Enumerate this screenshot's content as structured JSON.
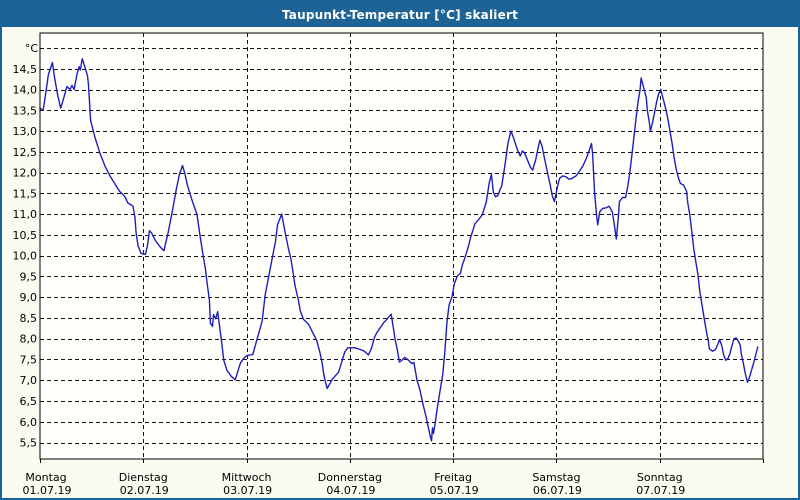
{
  "window": {
    "title": "Taupunkt-Temperatur [°C] skaliert"
  },
  "colors": {
    "titlebar": "#1d6396",
    "window_border": "#1d6396",
    "window_bg": "#fbfbf1",
    "plot_bg": "#fffffb",
    "grid": "#111111",
    "axis": "#000000",
    "line": "#1e1ebe",
    "title_text": "#ffffff"
  },
  "chart_data": {
    "type": "line",
    "title": "Taupunkt-Temperatur [°C] skaliert",
    "grid": true,
    "y_axis": {
      "unit_label": "°C",
      "grid_min": 5.5,
      "grid_max": 15.0,
      "step": 0.5,
      "labeled_min": 5.5,
      "labeled_max": 14.5,
      "decimal_separator": ","
    },
    "x_axis": {
      "days": [
        {
          "name": "Montag",
          "date": "01.07.19"
        },
        {
          "name": "Dienstag",
          "date": "02.07.19"
        },
        {
          "name": "Mittwoch",
          "date": "03.07.19"
        },
        {
          "name": "Donnerstag",
          "date": "04.07.19"
        },
        {
          "name": "Freitag",
          "date": "05.07.19"
        },
        {
          "name": "Samstag",
          "date": "06.07.19"
        },
        {
          "name": "Sonntag",
          "date": "07.07.19"
        }
      ]
    },
    "series": [
      {
        "name": "Taupunkt-Temperatur",
        "points": [
          [
            0,
            13.55
          ],
          [
            0.03,
            13.5
          ],
          [
            0.05,
            13.82
          ],
          [
            0.08,
            14.35
          ],
          [
            0.12,
            14.65
          ],
          [
            0.14,
            14.3
          ],
          [
            0.17,
            13.87
          ],
          [
            0.2,
            13.55
          ],
          [
            0.23,
            13.8
          ],
          [
            0.26,
            14.07
          ],
          [
            0.29,
            14.0
          ],
          [
            0.31,
            14.1
          ],
          [
            0.33,
            14.0
          ],
          [
            0.36,
            14.39
          ],
          [
            0.38,
            14.55
          ],
          [
            0.39,
            14.47
          ],
          [
            0.41,
            14.74
          ],
          [
            0.43,
            14.58
          ],
          [
            0.44,
            14.5
          ],
          [
            0.46,
            14.33
          ],
          [
            0.47,
            14.11
          ],
          [
            0.49,
            13.26
          ],
          [
            0.53,
            12.87
          ],
          [
            0.58,
            12.47
          ],
          [
            0.63,
            12.15
          ],
          [
            0.68,
            11.91
          ],
          [
            0.73,
            11.71
          ],
          [
            0.77,
            11.55
          ],
          [
            0.82,
            11.43
          ],
          [
            0.85,
            11.27
          ],
          [
            0.9,
            11.19
          ],
          [
            0.92,
            10.91
          ],
          [
            0.93,
            10.55
          ],
          [
            0.95,
            10.23
          ],
          [
            0.98,
            10.05
          ],
          [
            1.02,
            10.03
          ],
          [
            1.04,
            10.23
          ],
          [
            1.06,
            10.6
          ],
          [
            1.08,
            10.55
          ],
          [
            1.12,
            10.35
          ],
          [
            1.16,
            10.22
          ],
          [
            1.2,
            10.12
          ],
          [
            1.24,
            10.55
          ],
          [
            1.28,
            11.05
          ],
          [
            1.32,
            11.6
          ],
          [
            1.35,
            11.95
          ],
          [
            1.38,
            12.17
          ],
          [
            1.4,
            12.0
          ],
          [
            1.43,
            11.67
          ],
          [
            1.48,
            11.27
          ],
          [
            1.52,
            10.99
          ],
          [
            1.55,
            10.47
          ],
          [
            1.58,
            9.99
          ],
          [
            1.6,
            9.7
          ],
          [
            1.62,
            9.3
          ],
          [
            1.64,
            8.94
          ],
          [
            1.65,
            8.37
          ],
          [
            1.67,
            8.3
          ],
          [
            1.68,
            8.58
          ],
          [
            1.7,
            8.48
          ],
          [
            1.72,
            8.65
          ],
          [
            1.76,
            7.88
          ],
          [
            1.78,
            7.48
          ],
          [
            1.81,
            7.24
          ],
          [
            1.85,
            7.1
          ],
          [
            1.89,
            7.01
          ],
          [
            1.94,
            7.41
          ],
          [
            1.97,
            7.52
          ],
          [
            2.0,
            7.59
          ],
          [
            2.06,
            7.62
          ],
          [
            2.11,
            8.06
          ],
          [
            2.15,
            8.42
          ],
          [
            2.18,
            9.06
          ],
          [
            2.23,
            9.7
          ],
          [
            2.28,
            10.34
          ],
          [
            2.3,
            10.75
          ],
          [
            2.34,
            11.0
          ],
          [
            2.37,
            10.6
          ],
          [
            2.4,
            10.23
          ],
          [
            2.43,
            9.91
          ],
          [
            2.45,
            9.59
          ],
          [
            2.47,
            9.27
          ],
          [
            2.5,
            8.95
          ],
          [
            2.52,
            8.67
          ],
          [
            2.55,
            8.47
          ],
          [
            2.6,
            8.35
          ],
          [
            2.64,
            8.15
          ],
          [
            2.68,
            7.95
          ],
          [
            2.71,
            7.67
          ],
          [
            2.73,
            7.43
          ],
          [
            2.75,
            7.11
          ],
          [
            2.78,
            6.8
          ],
          [
            2.83,
            7.02
          ],
          [
            2.86,
            7.11
          ],
          [
            2.89,
            7.19
          ],
          [
            2.92,
            7.43
          ],
          [
            2.95,
            7.68
          ],
          [
            2.98,
            7.78
          ],
          [
            3.05,
            7.78
          ],
          [
            3.1,
            7.74
          ],
          [
            3.14,
            7.7
          ],
          [
            3.18,
            7.61
          ],
          [
            3.21,
            7.77
          ],
          [
            3.24,
            8.04
          ],
          [
            3.26,
            8.14
          ],
          [
            3.29,
            8.25
          ],
          [
            3.33,
            8.39
          ],
          [
            3.36,
            8.47
          ],
          [
            3.4,
            8.59
          ],
          [
            3.44,
            7.96
          ],
          [
            3.46,
            7.72
          ],
          [
            3.48,
            7.44
          ],
          [
            3.5,
            7.47
          ],
          [
            3.53,
            7.55
          ],
          [
            3.56,
            7.5
          ],
          [
            3.6,
            7.4
          ],
          [
            3.62,
            7.43
          ],
          [
            3.65,
            7.0
          ],
          [
            3.68,
            6.75
          ],
          [
            3.71,
            6.4
          ],
          [
            3.74,
            6.1
          ],
          [
            3.76,
            5.85
          ],
          [
            3.78,
            5.64
          ],
          [
            3.79,
            5.54
          ],
          [
            3.8,
            5.85
          ],
          [
            3.81,
            5.72
          ],
          [
            3.83,
            6.04
          ],
          [
            3.85,
            6.4
          ],
          [
            3.88,
            6.84
          ],
          [
            3.9,
            7.15
          ],
          [
            3.92,
            7.7
          ],
          [
            3.94,
            8.38
          ],
          [
            3.96,
            8.8
          ],
          [
            3.99,
            9.02
          ],
          [
            4.01,
            9.31
          ],
          [
            4.04,
            9.51
          ],
          [
            4.07,
            9.57
          ],
          [
            4.09,
            9.78
          ],
          [
            4.11,
            9.92
          ],
          [
            4.13,
            10.08
          ],
          [
            4.15,
            10.24
          ],
          [
            4.17,
            10.45
          ],
          [
            4.19,
            10.6
          ],
          [
            4.21,
            10.76
          ],
          [
            4.25,
            10.88
          ],
          [
            4.28,
            10.98
          ],
          [
            4.32,
            11.28
          ],
          [
            4.35,
            11.76
          ],
          [
            4.37,
            11.96
          ],
          [
            4.39,
            11.52
          ],
          [
            4.41,
            11.42
          ],
          [
            4.43,
            11.44
          ],
          [
            4.47,
            11.68
          ],
          [
            4.49,
            12.0
          ],
          [
            4.51,
            12.32
          ],
          [
            4.53,
            12.7
          ],
          [
            4.55,
            12.9
          ],
          [
            4.56,
            13.0
          ],
          [
            4.59,
            12.8
          ],
          [
            4.61,
            12.64
          ],
          [
            4.63,
            12.5
          ],
          [
            4.65,
            12.4
          ],
          [
            4.67,
            12.52
          ],
          [
            4.69,
            12.48
          ],
          [
            4.71,
            12.36
          ],
          [
            4.73,
            12.24
          ],
          [
            4.75,
            12.12
          ],
          [
            4.77,
            12.06
          ],
          [
            4.8,
            12.32
          ],
          [
            4.82,
            12.56
          ],
          [
            4.84,
            12.78
          ],
          [
            4.86,
            12.64
          ],
          [
            4.88,
            12.4
          ],
          [
            4.9,
            12.16
          ],
          [
            4.92,
            11.92
          ],
          [
            4.94,
            11.7
          ],
          [
            4.96,
            11.44
          ],
          [
            4.98,
            11.3
          ],
          [
            5.01,
            11.66
          ],
          [
            5.03,
            11.86
          ],
          [
            5.06,
            11.92
          ],
          [
            5.09,
            11.9
          ],
          [
            5.12,
            11.84
          ],
          [
            5.15,
            11.86
          ],
          [
            5.19,
            11.92
          ],
          [
            5.23,
            12.06
          ],
          [
            5.26,
            12.18
          ],
          [
            5.29,
            12.35
          ],
          [
            5.32,
            12.55
          ],
          [
            5.34,
            12.7
          ],
          [
            5.35,
            12.45
          ],
          [
            5.36,
            11.98
          ],
          [
            5.37,
            11.5
          ],
          [
            5.39,
            10.95
          ],
          [
            5.4,
            10.74
          ],
          [
            5.42,
            11.06
          ],
          [
            5.45,
            11.14
          ],
          [
            5.48,
            11.15
          ],
          [
            5.51,
            11.19
          ],
          [
            5.54,
            11.06
          ],
          [
            5.56,
            10.75
          ],
          [
            5.58,
            10.4
          ],
          [
            5.6,
            10.94
          ],
          [
            5.61,
            11.3
          ],
          [
            5.64,
            11.4
          ],
          [
            5.67,
            11.4
          ],
          [
            5.69,
            11.66
          ],
          [
            5.71,
            12.0
          ],
          [
            5.73,
            12.4
          ],
          [
            5.75,
            12.85
          ],
          [
            5.77,
            13.3
          ],
          [
            5.79,
            13.7
          ],
          [
            5.81,
            14.0
          ],
          [
            5.82,
            14.28
          ],
          [
            5.85,
            14.0
          ],
          [
            5.87,
            13.8
          ],
          [
            5.88,
            13.5
          ],
          [
            5.9,
            13.2
          ],
          [
            5.91,
            13.0
          ],
          [
            5.93,
            13.2
          ],
          [
            5.95,
            13.45
          ],
          [
            5.97,
            13.7
          ],
          [
            5.99,
            13.9
          ],
          [
            6.01,
            14.0
          ],
          [
            6.04,
            13.72
          ],
          [
            6.06,
            13.52
          ],
          [
            6.08,
            13.28
          ],
          [
            6.1,
            13.0
          ],
          [
            6.12,
            12.7
          ],
          [
            6.14,
            12.35
          ],
          [
            6.16,
            12.08
          ],
          [
            6.18,
            11.88
          ],
          [
            6.2,
            11.74
          ],
          [
            6.23,
            11.7
          ],
          [
            6.26,
            11.55
          ],
          [
            6.27,
            11.3
          ],
          [
            6.29,
            11.0
          ],
          [
            6.31,
            10.6
          ],
          [
            6.33,
            10.16
          ],
          [
            6.35,
            9.84
          ],
          [
            6.37,
            9.55
          ],
          [
            6.39,
            9.1
          ],
          [
            6.41,
            8.8
          ],
          [
            6.43,
            8.5
          ],
          [
            6.45,
            8.2
          ],
          [
            6.47,
            7.95
          ],
          [
            6.48,
            7.76
          ],
          [
            6.51,
            7.7
          ],
          [
            6.54,
            7.74
          ],
          [
            6.56,
            7.85
          ],
          [
            6.58,
            7.98
          ],
          [
            6.6,
            7.84
          ],
          [
            6.62,
            7.6
          ],
          [
            6.64,
            7.48
          ],
          [
            6.66,
            7.52
          ],
          [
            6.68,
            7.64
          ],
          [
            6.7,
            7.84
          ],
          [
            6.72,
            8.0
          ],
          [
            6.74,
            8.02
          ],
          [
            6.76,
            7.95
          ],
          [
            6.78,
            7.84
          ],
          [
            6.79,
            7.64
          ],
          [
            6.81,
            7.4
          ],
          [
            6.83,
            7.15
          ],
          [
            6.85,
            6.95
          ],
          [
            6.87,
            7.08
          ],
          [
            6.89,
            7.25
          ],
          [
            6.91,
            7.42
          ],
          [
            6.93,
            7.62
          ],
          [
            6.95,
            7.8
          ]
        ]
      }
    ]
  }
}
